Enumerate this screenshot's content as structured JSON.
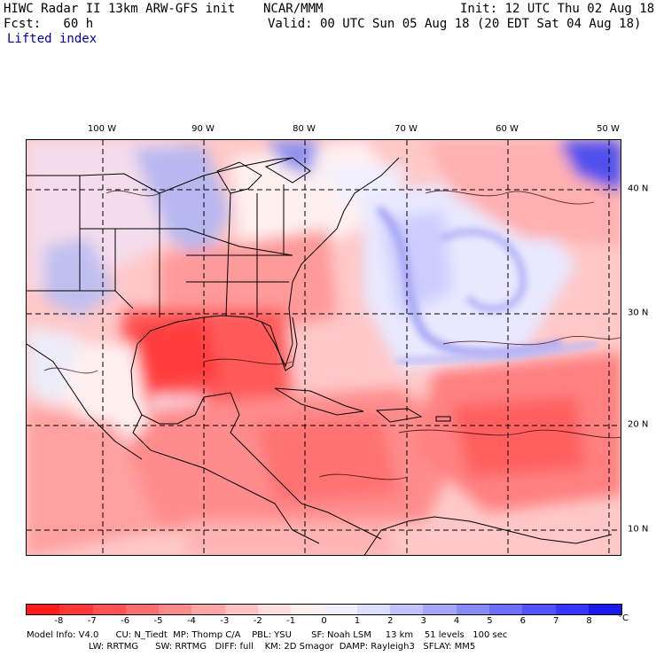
{
  "header": {
    "title": "HIWC Radar II 13km ARW-GFS init",
    "org": "NCAR/MMM",
    "init": "Init: 12 UTC Thu 02 Aug 18",
    "fcst": "Fcst:   60 h",
    "valid": "Valid: 00 UTC Sun 05 Aug 18 (20 EDT Sat 04 Aug 18)",
    "field": "Lifted index"
  },
  "map": {
    "longitude_labels": [
      "100 W",
      "90 W",
      "80 W",
      "70 W",
      "60 W",
      "50 W"
    ],
    "latitude_labels": [
      "40 N",
      "30 N",
      "20 N",
      "10 N"
    ]
  },
  "colorbar": {
    "ticks": [
      "-8",
      "-7",
      "-6",
      "-5",
      "-4",
      "-3",
      "-2",
      "-1",
      "0",
      "1",
      "2",
      "3",
      "4",
      "5",
      "6",
      "7",
      "8"
    ],
    "unit": "°C",
    "colors": [
      "#ff1a1a",
      "#ff3636",
      "#ff5252",
      "#ff6e6e",
      "#ff8a8a",
      "#ffa6a6",
      "#ffc2c2",
      "#ffdede",
      "#fff0f0",
      "#f0f0ff",
      "#dedeff",
      "#c2c2ff",
      "#a6a6ff",
      "#8a8aff",
      "#6e6eff",
      "#5252ff",
      "#3636ff",
      "#1a1aee"
    ]
  },
  "model_info": {
    "line1": "Model Info: V4.0      CU: N_Tiedt  MP: Thomp C/A    PBL: YSU       SF: Noah LSM     13 km    51 levels   100 sec",
    "line2": "                      LW: RRTMG      SW: RRTMG   DIFF: full    KM: 2D Smagor  DAMP: Rayleigh3   SFLAY: MM5"
  }
}
